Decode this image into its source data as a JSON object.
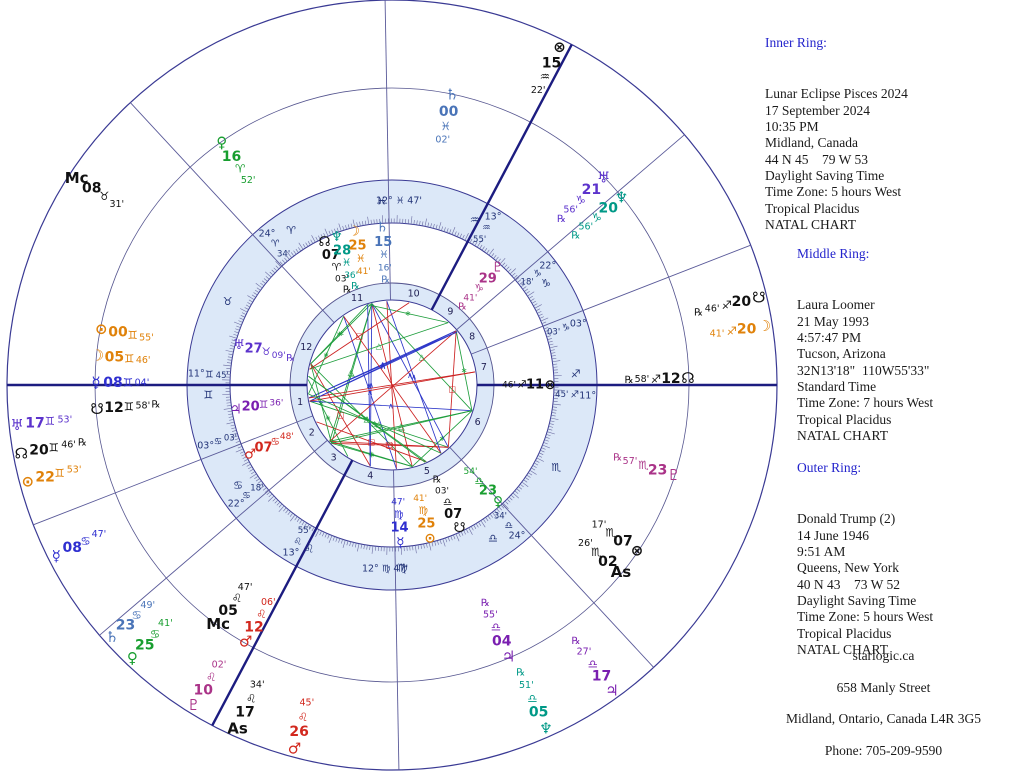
{
  "panels": {
    "inner": {
      "title": "Inner Ring:",
      "lines": [
        "Lunar Eclipse Pisces 2024",
        "17 September 2024",
        "10:35 PM",
        "Midland, Canada",
        "44 N 45    79 W 53",
        "Daylight Saving Time",
        "Time Zone: 5 hours West",
        "Tropical Placidus",
        "NATAL CHART"
      ]
    },
    "middle": {
      "title": "Middle Ring:",
      "lines": [
        "Laura Loomer",
        "21 May 1993",
        "4:57:47 PM",
        "Tucson, Arizona",
        "32N13'18\"  110W55'33\"",
        "Standard Time",
        "Time Zone: 7 hours West",
        "Tropical Placidus",
        "NATAL CHART"
      ]
    },
    "outer": {
      "title": "Outer Ring:",
      "lines": [
        "Donald Trump (2)",
        "14 June 1946",
        "9:51 AM",
        "Queens, New York",
        "40 N 43    73 W 52",
        "Daylight Saving Time",
        "Time Zone: 5 hours West",
        "Tropical Placidus",
        "NATAL CHART"
      ]
    }
  },
  "footer": {
    "lines": [
      "starlogic.ca",
      "658 Manly Street",
      "Midland, Ontario, Canada  L4R 3G5",
      "Phone: 705-209-9590"
    ]
  },
  "chart_data": {
    "type": "tri-wheel-astrology",
    "ascendant_lon_deg": 71.75,
    "zodiac_signs": [
      "♈",
      "♉",
      "♊",
      "♋",
      "♌",
      "♍",
      "♎",
      "♏",
      "♐",
      "♑",
      "♒",
      "♓"
    ],
    "colors": {
      "sun": "#e0820a",
      "moon": "#e0820a",
      "mercury": "#2f2fd0",
      "venus": "#189e2f",
      "mars": "#d2281e",
      "jupiter": "#7a1fb0",
      "saturn": "#4a74b8",
      "uranus": "#5c33cc",
      "neptune": "#009987",
      "pluto": "#aa3388",
      "node": "#111111",
      "point": "#111111",
      "band_fill": "#dce8f8",
      "wheel_line": "#3a3a94",
      "axis_line": "#1c1c80",
      "band_text": "#223377",
      "house_number": "#222255",
      "tick": "#6a6aa0",
      "aspect_sextile": "#1f9e3d",
      "aspect_square": "#cc2222",
      "aspect_trine": "#1f9e3d",
      "aspect_quincunx": "#2b35c8",
      "aspect_opposition": "#cc2222"
    },
    "houses": [
      {
        "num": 1,
        "lon": 71.75,
        "label": [
          "11°",
          "♊",
          "45'"
        ]
      },
      {
        "num": 2,
        "lon": 93.05,
        "label": [
          "03°",
          "♋",
          "03'"
        ]
      },
      {
        "num": 3,
        "lon": 112.3,
        "label": [
          "22°",
          "♋",
          "18'"
        ]
      },
      {
        "num": 4,
        "lon": 133.92,
        "label": [
          "13°",
          "♌",
          "55'"
        ]
      },
      {
        "num": 5,
        "lon": 162.78,
        "label": [
          "12°",
          "♍",
          "47'"
        ]
      },
      {
        "num": 6,
        "lon": 204.57,
        "label": [
          "24°",
          "♎",
          "34'"
        ]
      },
      {
        "num": 7,
        "lon": 251.75,
        "label": [
          "11°",
          "♐",
          "45'"
        ]
      },
      {
        "num": 8,
        "lon": 273.05,
        "label": [
          "03°",
          "♑",
          "03'"
        ]
      },
      {
        "num": 9,
        "lon": 292.3,
        "label": [
          "22°",
          "♑",
          "18'"
        ]
      },
      {
        "num": 10,
        "lon": 313.92,
        "label": [
          "13°",
          "♒",
          "55'"
        ]
      },
      {
        "num": 11,
        "lon": 342.78,
        "label": [
          "12°",
          "♓",
          "47'"
        ]
      },
      {
        "num": 12,
        "lon": 24.57,
        "label": [
          "24°",
          "♈",
          "34'"
        ]
      }
    ],
    "rings": {
      "inner": {
        "owner": "Lunar Eclipse Pisces 2024",
        "planets": [
          {
            "name": "sun",
            "glyph": "⊙",
            "deg": "25",
            "sign": "♍",
            "min": "41'",
            "retro": false,
            "lon": 175.68,
            "color": "sun"
          },
          {
            "name": "moon",
            "glyph": "☽",
            "deg": "25",
            "sign": "♓",
            "min": "41'",
            "retro": false,
            "lon": 355.68,
            "color": "moon"
          },
          {
            "name": "mercury",
            "glyph": "☿",
            "deg": "14",
            "sign": "♍",
            "min": "47'",
            "retro": false,
            "lon": 164.78,
            "color": "mercury"
          },
          {
            "name": "venus",
            "glyph": "♀",
            "deg": "23",
            "sign": "♎",
            "min": "54'",
            "retro": false,
            "lon": 203.9,
            "color": "venus"
          },
          {
            "name": "mars",
            "glyph": "♂",
            "deg": "07",
            "sign": "♋",
            "min": "48'",
            "retro": false,
            "lon": 97.8,
            "color": "mars"
          },
          {
            "name": "jupiter",
            "glyph": "♃",
            "deg": "20",
            "sign": "♊",
            "min": "36'",
            "retro": false,
            "lon": 80.6,
            "color": "jupiter"
          },
          {
            "name": "saturn",
            "glyph": "♄",
            "deg": "15",
            "sign": "♓",
            "min": "16'",
            "retro": true,
            "lon": 345.27,
            "color": "saturn"
          },
          {
            "name": "uranus",
            "glyph": "♅",
            "deg": "27",
            "sign": "♉",
            "min": "09'",
            "retro": true,
            "lon": 57.15,
            "color": "uranus"
          },
          {
            "name": "neptune",
            "glyph": "♆",
            "deg": "28",
            "sign": "♓",
            "min": "36'",
            "retro": true,
            "lon": 358.6,
            "color": "neptune"
          },
          {
            "name": "pluto",
            "glyph": "♇",
            "deg": "29",
            "sign": "♑",
            "min": "41'",
            "retro": true,
            "lon": 299.68,
            "color": "pluto"
          },
          {
            "name": "north-node",
            "glyph": "☊",
            "deg": "07",
            "sign": "♈",
            "min": "03'",
            "retro": true,
            "lon": 7.05,
            "color": "node"
          },
          {
            "name": "south-node",
            "glyph": "☋",
            "deg": "07",
            "sign": "♎",
            "min": "03'",
            "retro": true,
            "lon": 187.05,
            "color": "node"
          },
          {
            "name": "part-of-fortune",
            "glyph": "⊗",
            "deg": "11",
            "sign": "♐",
            "min": "46'",
            "retro": false,
            "lon": 251.77,
            "color": "point"
          }
        ]
      },
      "middle": {
        "owner": "Laura Loomer",
        "planets": [
          {
            "name": "sun",
            "glyph": "⊙",
            "deg": "00",
            "sign": "♊",
            "min": "55'",
            "retro": false,
            "lon": 60.92,
            "color": "sun"
          },
          {
            "name": "moon",
            "glyph": "☽",
            "deg": "05",
            "sign": "♊",
            "min": "46'",
            "retro": false,
            "lon": 65.77,
            "color": "moon"
          },
          {
            "name": "mercury",
            "glyph": "☿",
            "deg": "08",
            "sign": "♊",
            "min": "04'",
            "retro": false,
            "lon": 68.07,
            "color": "mercury"
          },
          {
            "name": "venus",
            "glyph": "♀",
            "deg": "16",
            "sign": "♈",
            "min": "52'",
            "retro": false,
            "lon": 16.87,
            "color": "venus"
          },
          {
            "name": "mars",
            "glyph": "♂",
            "deg": "12",
            "sign": "♌",
            "min": "06'",
            "retro": false,
            "lon": 132.1,
            "color": "mars"
          },
          {
            "name": "jupiter",
            "glyph": "♃",
            "deg": "04",
            "sign": "♎",
            "min": "55'",
            "retro": true,
            "lon": 184.92,
            "color": "jupiter"
          },
          {
            "name": "saturn",
            "glyph": "♄",
            "deg": "00",
            "sign": "♓",
            "min": "02'",
            "retro": false,
            "lon": 330.03,
            "color": "saturn"
          },
          {
            "name": "uranus",
            "glyph": "♅",
            "deg": "21",
            "sign": "♑",
            "min": "56'",
            "retro": true,
            "lon": 291.93,
            "color": "uranus"
          },
          {
            "name": "neptune",
            "glyph": "♆",
            "deg": "20",
            "sign": "♑",
            "min": "56'",
            "retro": true,
            "lon": 290.93,
            "color": "neptune"
          },
          {
            "name": "pluto",
            "glyph": "♇",
            "deg": "23",
            "sign": "♏",
            "min": "57'",
            "retro": true,
            "lon": 233.95,
            "color": "pluto"
          },
          {
            "name": "north-node",
            "glyph": "☊",
            "deg": "12",
            "sign": "♐",
            "min": "58'",
            "retro": true,
            "lon": 252.97,
            "color": "node"
          },
          {
            "name": "south-node",
            "glyph": "☋",
            "deg": "12",
            "sign": "♊",
            "min": "58'",
            "retro": true,
            "lon": 72.97,
            "color": "node"
          },
          {
            "name": "part-of-fortune",
            "glyph": "⊗",
            "deg": "07",
            "sign": "♏",
            "min": "17'",
            "retro": false,
            "lon": 217.28,
            "color": "point"
          },
          {
            "name": "ascendant",
            "glyph": "As",
            "deg": "02",
            "sign": "♏",
            "min": "26'",
            "retro": false,
            "lon": 212.43,
            "color": "point"
          },
          {
            "name": "midheaven",
            "glyph": "Mc",
            "deg": "05",
            "sign": "♌",
            "min": "47'",
            "retro": false,
            "lon": 125.78,
            "color": "point"
          }
        ]
      },
      "outer": {
        "owner": "Donald Trump (2)",
        "planets": [
          {
            "name": "sun",
            "glyph": "⊙",
            "deg": "22",
            "sign": "♊",
            "min": "53'",
            "retro": false,
            "lon": 82.88,
            "color": "sun"
          },
          {
            "name": "moon",
            "glyph": "☽",
            "deg": "20",
            "sign": "♐",
            "min": "41'",
            "retro": false,
            "lon": 260.68,
            "color": "moon"
          },
          {
            "name": "mercury",
            "glyph": "☿",
            "deg": "08",
            "sign": "♋",
            "min": "47'",
            "retro": false,
            "lon": 98.78,
            "color": "mercury"
          },
          {
            "name": "venus",
            "glyph": "♀",
            "deg": "25",
            "sign": "♋",
            "min": "41'",
            "retro": false,
            "lon": 115.68,
            "color": "venus"
          },
          {
            "name": "mars",
            "glyph": "♂",
            "deg": "26",
            "sign": "♌",
            "min": "45'",
            "retro": false,
            "lon": 146.75,
            "color": "mars"
          },
          {
            "name": "jupiter",
            "glyph": "♃",
            "deg": "17",
            "sign": "♎",
            "min": "27'",
            "retro": true,
            "lon": 197.45,
            "color": "jupiter"
          },
          {
            "name": "saturn",
            "glyph": "♄",
            "deg": "23",
            "sign": "♋",
            "min": "49'",
            "retro": false,
            "lon": 113.82,
            "color": "saturn"
          },
          {
            "name": "uranus",
            "glyph": "♅",
            "deg": "17",
            "sign": "♊",
            "min": "53'",
            "retro": false,
            "lon": 77.88,
            "color": "uranus"
          },
          {
            "name": "neptune",
            "glyph": "♆",
            "deg": "05",
            "sign": "♎",
            "min": "51'",
            "retro": true,
            "lon": 185.85,
            "color": "neptune"
          },
          {
            "name": "pluto",
            "glyph": "♇",
            "deg": "10",
            "sign": "♌",
            "min": "02'",
            "retro": false,
            "lon": 130.03,
            "color": "pluto"
          },
          {
            "name": "north-node",
            "glyph": "☊",
            "deg": "20",
            "sign": "♊",
            "min": "46'",
            "retro": true,
            "lon": 80.77,
            "color": "node"
          },
          {
            "name": "south-node",
            "glyph": "☋",
            "deg": "20",
            "sign": "♐",
            "min": "46'",
            "retro": true,
            "lon": 260.77,
            "color": "node"
          },
          {
            "name": "part-of-fortune",
            "glyph": "⊗",
            "deg": "15",
            "sign": "♒",
            "min": "22'",
            "retro": false,
            "lon": 315.37,
            "color": "point"
          },
          {
            "name": "ascendant",
            "glyph": "As",
            "deg": "17",
            "sign": "♌",
            "min": "34'",
            "retro": false,
            "lon": 137.57,
            "color": "point"
          },
          {
            "name": "midheaven",
            "glyph": "Mc",
            "deg": "08",
            "sign": "♉",
            "min": "31'",
            "retro": false,
            "lon": 38.52,
            "color": "point"
          }
        ]
      }
    },
    "aspects": {
      "orb": 2.2,
      "types": [
        {
          "angle": 60,
          "color_key": "aspect_sextile",
          "symbol": "∗"
        },
        {
          "angle": 90,
          "color_key": "aspect_square",
          "symbol": "□"
        },
        {
          "angle": 120,
          "color_key": "aspect_trine",
          "symbol": "△"
        },
        {
          "angle": 150,
          "color_key": "aspect_quincunx",
          "symbol": "∧"
        },
        {
          "angle": 180,
          "color_key": "aspect_opposition",
          "symbol": ""
        }
      ]
    }
  }
}
